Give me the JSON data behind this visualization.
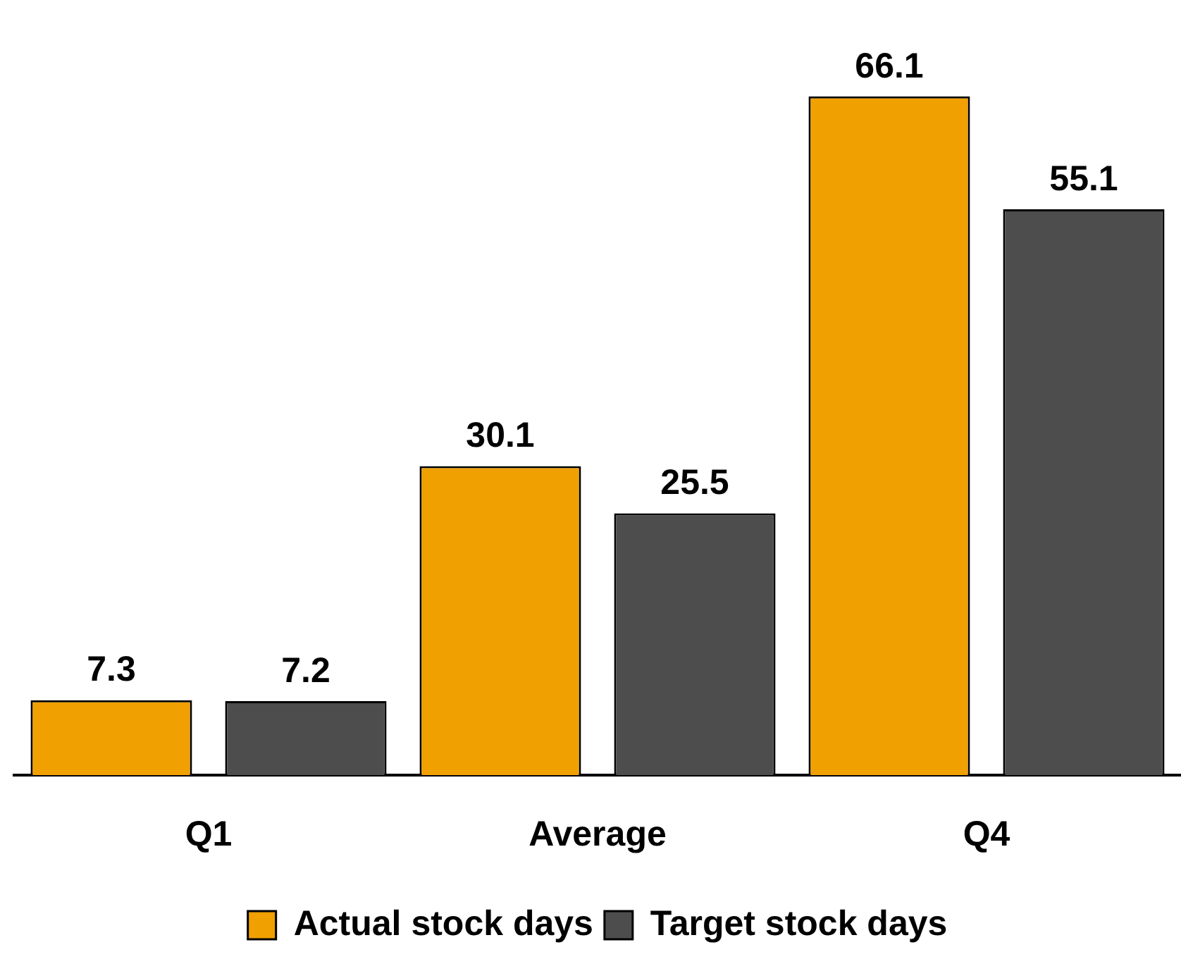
{
  "chart_data": {
    "type": "bar",
    "categories": [
      "Q1",
      "Average",
      "Q4"
    ],
    "series": [
      {
        "name": "Actual stock days",
        "color": "#f0a000",
        "values": [
          7.3,
          30.1,
          66.1
        ]
      },
      {
        "name": "Target stock days",
        "color": "#4d4d4d",
        "values": [
          7.2,
          25.5,
          55.1
        ]
      }
    ],
    "tick_labels": "x",
    "grid": false,
    "legend": "bottom",
    "data_labels": true
  }
}
